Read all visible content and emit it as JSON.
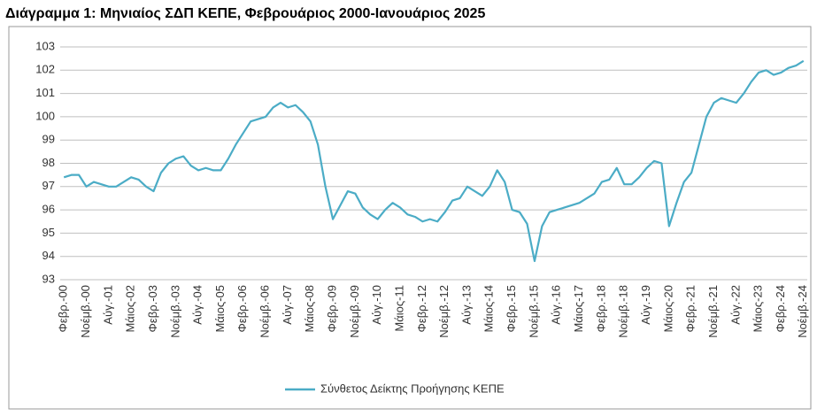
{
  "chart_data": {
    "type": "line",
    "title": "Διάγραμμα 1: Μηνιαίος ΣΔΠ ΚΕΠΕ, Φεβρουάριος 2000-Ιανουάριος 2025",
    "categories": [
      "Φεβρ.-00",
      null,
      null,
      "Νοέμβ.-00",
      null,
      null,
      "Αύγ.-01",
      null,
      null,
      "Μάιος-02",
      null,
      null,
      "Φεβρ.-03",
      null,
      null,
      "Νοέμβ.-03",
      null,
      null,
      "Αύγ.-04",
      null,
      null,
      "Μάιος-05",
      null,
      null,
      "Φεβρ.-06",
      null,
      null,
      "Νοέμβ.-06",
      null,
      null,
      "Αύγ.-07",
      null,
      null,
      "Μάιος-08",
      null,
      null,
      "Φεβρ.-09",
      null,
      null,
      "Νοέμβ.-09",
      null,
      null,
      "Αύγ.-10",
      null,
      null,
      "Μάιος-11",
      null,
      null,
      "Φεβρ.-12",
      null,
      null,
      "Νοέμβ.-12",
      null,
      null,
      "Αύγ.-13",
      null,
      null,
      "Μάιος-14",
      null,
      null,
      "Φεβρ.-15",
      null,
      null,
      "Νοέμβ.-15",
      null,
      null,
      "Αύγ.-16",
      null,
      null,
      "Μάιος-17",
      null,
      null,
      "Φεβρ.-18",
      null,
      null,
      "Νοέμβ.-18",
      null,
      null,
      "Αύγ.-19",
      null,
      null,
      "Μάιος-20",
      null,
      null,
      "Φεβρ.-21",
      null,
      null,
      "Νοέμβ.-21",
      null,
      null,
      "Αύγ.-22",
      null,
      null,
      "Μάιος-23",
      null,
      null,
      "Φεβρ.-24",
      null,
      null,
      "Νοέμβ.-24"
    ],
    "series": [
      {
        "name": "Σύνθετος Δείκτης Προήγησης ΚΕΠΕ",
        "color": "#4bacc6",
        "values": [
          97.4,
          97.5,
          97.5,
          97.0,
          97.2,
          97.1,
          97.0,
          97.0,
          97.2,
          97.4,
          97.3,
          97.0,
          96.8,
          97.6,
          98.0,
          98.2,
          98.3,
          97.9,
          97.7,
          97.8,
          97.7,
          97.7,
          98.2,
          98.8,
          99.3,
          99.8,
          99.9,
          100.0,
          100.4,
          100.6,
          100.4,
          100.5,
          100.2,
          99.8,
          98.8,
          97.0,
          95.6,
          96.2,
          96.8,
          96.7,
          96.1,
          95.8,
          95.6,
          96.0,
          96.3,
          96.1,
          95.8,
          95.7,
          95.5,
          95.6,
          95.5,
          95.9,
          96.4,
          96.5,
          97.0,
          96.8,
          96.6,
          97.0,
          97.7,
          97.2,
          96.0,
          95.9,
          95.4,
          93.8,
          95.3,
          95.9,
          96.0,
          96.1,
          96.2,
          96.3,
          96.5,
          96.7,
          97.2,
          97.3,
          97.8,
          97.1,
          97.1,
          97.4,
          97.8,
          98.1,
          98.0,
          95.3,
          96.3,
          97.2,
          97.6,
          98.8,
          100.0,
          100.6,
          100.8,
          100.7,
          100.6,
          101.0,
          101.5,
          101.9,
          102.0,
          101.8,
          101.9,
          102.1,
          102.2,
          102.4
        ]
      }
    ],
    "ylim": [
      93,
      103
    ],
    "yticks": [
      93,
      94,
      95,
      96,
      97,
      98,
      99,
      100,
      101,
      102,
      103
    ],
    "grid": true,
    "legend": "bottom"
  }
}
